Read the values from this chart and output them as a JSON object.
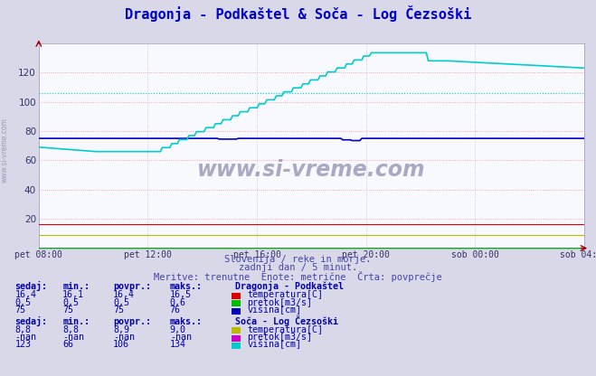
{
  "title": "Dragonja - Podkaštel & Soča - Log Čezsoški",
  "title_color": "#0000cc",
  "title_fontsize": 11,
  "bg_color": "#d8d8e8",
  "plot_bg_color": "#f8f8ff",
  "xlabel_ticks": [
    "pet 08:00",
    "pet 12:00",
    "pet 16:00",
    "pet 20:00",
    "sob 00:00",
    "sob 04:00"
  ],
  "ylim": [
    0,
    140
  ],
  "yticks": [
    20,
    40,
    60,
    80,
    100,
    120
  ],
  "grid_color_red": "#ff8888",
  "grid_color_blue": "#bbbbdd",
  "n_points": 288,
  "dragonja_visina_val": 75,
  "dragonja_visina_color": "#0000bb",
  "dragonja_temp_val": 16.4,
  "dragonja_temp_color": "#dd0000",
  "dragonja_pretok_val": 0.5,
  "dragonja_pretok_color": "#00bb00",
  "soca_visina_color": "#00cccc",
  "soca_visina_avg": 106,
  "soca_temp_val": 8.8,
  "soca_temp_color": "#bbbb00",
  "soca_pretok_color": "#cc00cc",
  "watermark_text": "www.si-vreme.com",
  "watermark_color": "#8888aa",
  "subtitle1": "Slovenija / reke in morje.",
  "subtitle2": "zadnji dan / 5 minut.",
  "subtitle3": "Meritve: trenutne  Enote: metrične  Črta: povprečje",
  "subtitle_color": "#4444aa",
  "table_color": "#0000aa",
  "station1_name": "Dragonja - Podkaštel",
  "station2_name": "Soča - Log Čezsoški",
  "legend1": [
    {
      "label": "temperatura[C]",
      "color": "#dd0000"
    },
    {
      "label": "pretok[m3/s]",
      "color": "#00bb00"
    },
    {
      "label": "višina[cm]",
      "color": "#0000bb"
    }
  ],
  "legend2": [
    {
      "label": "temperatura[C]",
      "color": "#bbbb00"
    },
    {
      "label": "pretok[m3/s]",
      "color": "#cc00cc"
    },
    {
      "label": "višina[cm]",
      "color": "#00cccc"
    }
  ],
  "stats1_headers": [
    "sedaj:",
    "min.:",
    "povpr.:",
    "maks.:"
  ],
  "stats1_rows": [
    [
      "16,4",
      "16,1",
      "16,4",
      "16,5"
    ],
    [
      "0,5",
      "0,5",
      "0,5",
      "0,6"
    ],
    [
      "75",
      "75",
      "75",
      "76"
    ]
  ],
  "stats2_headers": [
    "sedaj:",
    "min.:",
    "povpr.:",
    "maks.:"
  ],
  "stats2_rows": [
    [
      "8,8",
      "8,8",
      "8,9",
      "9,0"
    ],
    [
      "-nan",
      "-nan",
      "-nan",
      "-nan"
    ],
    [
      "123",
      "66",
      "106",
      "134"
    ]
  ]
}
